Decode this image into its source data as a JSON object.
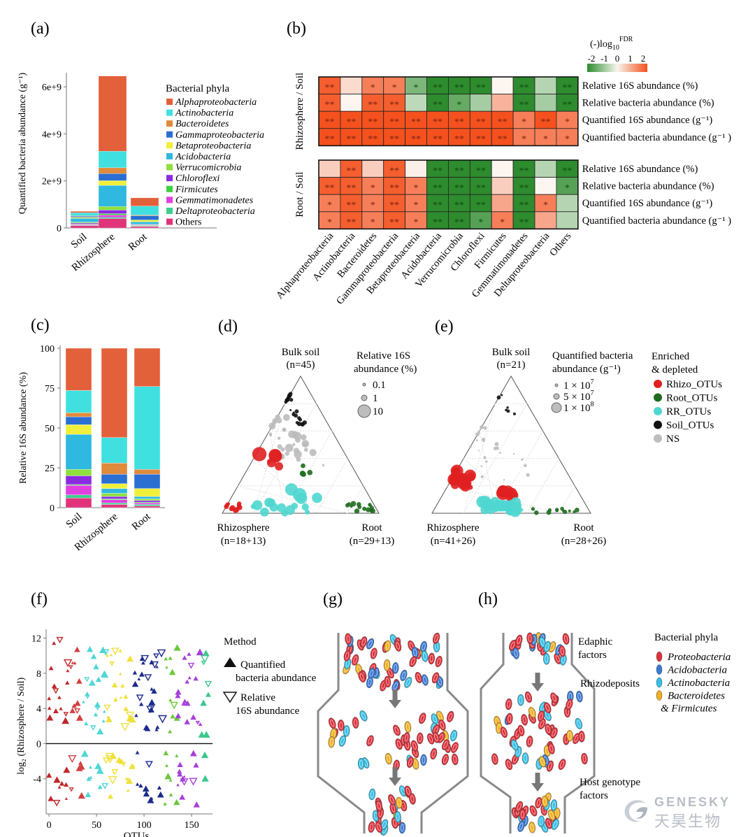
{
  "panel_labels": {
    "a": "(a)",
    "b": "(b)",
    "c": "(c)",
    "d": "(d)",
    "e": "(e)",
    "f": "(f)",
    "g": "(g)",
    "h": "(h)"
  },
  "colors": {
    "Alphaproteobacteria": "#e2603a",
    "Actinobacteria": "#40e0e0",
    "Bacteroidetes": "#e08a3c",
    "Gammaproteobacteria": "#2a6fd1",
    "Betaproteobacteria": "#f0f03c",
    "Acidobacteria": "#2fb8e0",
    "Verrucomicrobia": "#8ee03c",
    "Chloroflexi": "#8a2be2",
    "Firmicutes": "#3cd23c",
    "Gemmatimonadetes": "#e040e0",
    "Deltaproteobacteria": "#3ccf8e",
    "Others": "#e0337a",
    "main_orange": "#f4511e"
  },
  "chart_data": [
    {
      "id": "a",
      "type": "bar",
      "stacked": true,
      "ylabel": "Quantified bacteria abundance (g⁻¹)",
      "yticks": [
        "0",
        "2e+9",
        "4e+9",
        "6e+9"
      ],
      "ytick_values": [
        0,
        2000000000,
        4000000000,
        6000000000
      ],
      "ylim": [
        0,
        6600000000
      ],
      "categories": [
        "Soil",
        "Rhizosphere",
        "Root"
      ],
      "legend_title": "Bacterial phyla",
      "series": [
        {
          "name": "Alphaproteobacteria",
          "values": [
            60000000,
            3200000000,
            350000000
          ]
        },
        {
          "name": "Actinobacteria",
          "values": [
            130000000,
            700000000,
            380000000
          ]
        },
        {
          "name": "Bacteroidetes",
          "values": [
            20000000,
            250000000,
            30000000
          ]
        },
        {
          "name": "Gammaproteobacteria",
          "values": [
            50000000,
            300000000,
            180000000
          ]
        },
        {
          "name": "Betaproteobacteria",
          "values": [
            40000000,
            200000000,
            80000000
          ]
        },
        {
          "name": "Acidobacteria",
          "values": [
            160000000,
            900000000,
            100000000
          ]
        },
        {
          "name": "Verrucomicrobia",
          "values": [
            40000000,
            150000000,
            20000000
          ]
        },
        {
          "name": "Chloroflexi",
          "values": [
            40000000,
            150000000,
            20000000
          ]
        },
        {
          "name": "Firmicutes",
          "values": [
            20000000,
            60000000,
            20000000
          ]
        },
        {
          "name": "Gemmatimonadetes",
          "values": [
            30000000,
            100000000,
            20000000
          ]
        },
        {
          "name": "Deltaproteobacteria",
          "values": [
            20000000,
            50000000,
            20000000
          ]
        },
        {
          "name": "Others",
          "values": [
            100000000,
            400000000,
            60000000
          ]
        }
      ]
    },
    {
      "id": "b",
      "type": "heatmap",
      "scale_title": "(-)log",
      "scale_sub": "10",
      "scale_sup": "FDR",
      "scale_ticks": [
        "-2",
        "-1",
        "0",
        "1",
        "2"
      ],
      "group_labels": [
        "Rhizosphere / Soil",
        "Root / Soil"
      ],
      "row_labels": [
        "Relative 16S abundance (%)",
        "Relative bacteria abundance (%)",
        "Quantified 16S abundance (g⁻¹)",
        "Quantified bacteria abundance (g⁻¹ )"
      ],
      "columns": [
        "Alphaproteobacteria",
        "Actinobacteria",
        "Bacteroidetes",
        "Gammaproteobacteria",
        "Betaproteobacteria",
        "Acidobacteria",
        "Verrucomicrobia",
        "Chloroflexi",
        "Firmicutes",
        "Gemmatimonadetes",
        "Deltaproteobacteria",
        "Others"
      ],
      "values": [
        [
          [
            2.3,
            0.4,
            1.8,
            1.8,
            -1.5,
            -2.5,
            -2.5,
            -2.5,
            0.0,
            -2.5,
            -0.8,
            -2.5
          ],
          [
            2.3,
            0.0,
            2.3,
            2.3,
            -0.7,
            -2.5,
            -1.8,
            -1.0,
            1.0,
            -2.5,
            -1.0,
            -2.5
          ],
          [
            2.5,
            2.5,
            2.5,
            2.5,
            2.5,
            2.5,
            2.5,
            2.5,
            2.5,
            1.8,
            2.5,
            1.8
          ],
          [
            2.5,
            2.5,
            2.5,
            2.5,
            2.5,
            2.5,
            2.5,
            2.5,
            2.5,
            1.8,
            1.8,
            1.8
          ]
        ],
        [
          [
            0.6,
            2.3,
            0.6,
            2.3,
            0.1,
            -2.5,
            -2.5,
            -2.5,
            0.0,
            -2.5,
            -0.8,
            -2.5
          ],
          [
            2.3,
            2.3,
            1.8,
            2.3,
            1.8,
            -2.5,
            -2.5,
            -2.5,
            0.6,
            -2.5,
            0.0,
            -2.0
          ],
          [
            1.8,
            2.3,
            1.8,
            2.3,
            1.8,
            -2.5,
            -2.5,
            -2.5,
            1.2,
            -2.5,
            1.8,
            -0.8
          ],
          [
            1.8,
            2.3,
            1.8,
            2.3,
            1.8,
            -2.5,
            -2.5,
            -2.0,
            1.8,
            -2.5,
            1.2,
            -0.8
          ]
        ]
      ],
      "stars": [
        [
          [
            "**",
            "",
            "*",
            "*",
            "*",
            "**",
            "**",
            "**",
            "",
            "**",
            "",
            "**"
          ],
          [
            "**",
            "",
            "**",
            "**",
            "",
            "**",
            "*",
            "",
            "",
            "**",
            "",
            "**"
          ],
          [
            "**",
            "**",
            "**",
            "**",
            "**",
            "**",
            "**",
            "**",
            "**",
            "*",
            "**",
            "*"
          ],
          [
            "**",
            "**",
            "**",
            "**",
            "**",
            "**",
            "**",
            "**",
            "**",
            "*",
            "*",
            "*"
          ]
        ],
        [
          [
            "",
            "**",
            "",
            "**",
            "",
            "**",
            "**",
            "**",
            "",
            "**",
            "",
            "**"
          ],
          [
            "**",
            "**",
            "*",
            "**",
            "*",
            "**",
            "**",
            "**",
            "",
            "**",
            "",
            "*"
          ],
          [
            "*",
            "**",
            "*",
            "**",
            "*",
            "**",
            "**",
            "**",
            "",
            "**",
            "*",
            ""
          ],
          [
            "*",
            "**",
            "*",
            "**",
            "*",
            "**",
            "**",
            "*",
            "*",
            "**",
            "",
            ""
          ]
        ]
      ]
    },
    {
      "id": "c",
      "type": "bar",
      "stacked": true,
      "ylabel": "Relative 16S abundance (%)",
      "yticks": [
        "0",
        "25",
        "50",
        "75",
        "100"
      ],
      "ytick_values": [
        0,
        25,
        50,
        75,
        100
      ],
      "ylim": [
        0,
        100
      ],
      "categories": [
        "Soil",
        "Rhizosphere",
        "Root"
      ],
      "series": [
        {
          "name": "Others",
          "values": [
            6,
            2,
            1
          ]
        },
        {
          "name": "Deltaproteobacteria",
          "values": [
            2,
            1,
            1
          ]
        },
        {
          "name": "Gemmatimonadetes",
          "values": [
            6,
            2,
            1
          ]
        },
        {
          "name": "Firmicutes",
          "values": [
            0.5,
            0.5,
            0.5
          ]
        },
        {
          "name": "Chloroflexi",
          "values": [
            5.5,
            1.5,
            1
          ]
        },
        {
          "name": "Verrucomicrobia",
          "values": [
            4,
            2,
            1
          ]
        },
        {
          "name": "Acidobacteria",
          "values": [
            22,
            3,
            1.5
          ]
        },
        {
          "name": "Betaproteobacteria",
          "values": [
            6,
            3,
            5
          ]
        },
        {
          "name": "Gammaproteobacteria",
          "values": [
            5,
            6,
            9
          ]
        },
        {
          "name": "Bacteroidetes",
          "values": [
            2.5,
            7,
            3
          ]
        },
        {
          "name": "Actinobacteria",
          "values": [
            14,
            16,
            52
          ]
        },
        {
          "name": "Alphaproteobacteria",
          "values": [
            26.5,
            56,
            24
          ]
        }
      ]
    },
    {
      "id": "d",
      "type": "scatter",
      "ternary": true,
      "top_label": "Bulk soil",
      "top_n": "(n=45)",
      "left_label": "Rhizosphere",
      "left_n": "(n=18+13)",
      "right_label": "Root",
      "right_n": "(n=29+13)",
      "size_title": "Relative 16S abundance (%)",
      "size_legend": [
        "0.1",
        "1",
        "10"
      ]
    },
    {
      "id": "e",
      "type": "scatter",
      "ternary": true,
      "top_label": "Bulk soil",
      "top_n": "(n=21)",
      "left_label": "Rhizosphere",
      "left_n": "(n=41+26)",
      "right_label": "Root",
      "right_n": "(n=28+26)",
      "size_title": "Quantified bacteria abundance (g⁻¹)",
      "size_legend_base": "1 × 10",
      "size_legend": [
        {
          "coef": "1",
          "exp": "7"
        },
        {
          "coef": "5",
          "exp": "7"
        },
        {
          "coef": "1",
          "exp": "8"
        }
      ],
      "legend_title": "Enriched & depleted",
      "legend": [
        {
          "name": "Rhizo_OTUs",
          "color": "#e02020"
        },
        {
          "name": "Root_OTUs",
          "color": "#1e6b1e"
        },
        {
          "name": "RR_OTUs",
          "color": "#4fd6cf"
        },
        {
          "name": "Soil_OTUs",
          "color": "#111111"
        },
        {
          "name": "NS",
          "color": "#bdbdbd"
        }
      ]
    },
    {
      "id": "f",
      "type": "scatter",
      "xlabel": "OTUs",
      "ylabel": "log₂ (Rhizosphere / Soil)",
      "xticks": [
        "0",
        "50",
        "100",
        "150"
      ],
      "xtick_values": [
        0,
        50,
        100,
        150
      ],
      "yticks": [
        "-4",
        "0",
        "4",
        "8",
        "12"
      ],
      "ytick_values": [
        -4,
        0,
        4,
        8,
        12
      ],
      "xlim": [
        -3,
        172
      ],
      "ylim": [
        -8,
        13
      ],
      "legend_title": "Method",
      "legend": [
        "Quantified bacteria abundance",
        "Relative 16S abundance"
      ]
    }
  ],
  "panel_g": {
    "legend_title": "Bacterial phyla",
    "legend": [
      {
        "name": "Proteobacteria",
        "color": "#e0303a"
      },
      {
        "name": "Acidobacteria",
        "color": "#3a7ad6"
      },
      {
        "name": "Actinobacteria",
        "color": "#36c0e6"
      },
      {
        "name": "Bacteroidetes & Firmicutes",
        "color": "#f2b020"
      }
    ]
  },
  "panel_h": {
    "labels": [
      "Edaphic factors",
      "Rhizodeposits",
      "Host genotype factors"
    ]
  },
  "watermark": {
    "en": "GENESKY",
    "cn": "天昊生物"
  }
}
